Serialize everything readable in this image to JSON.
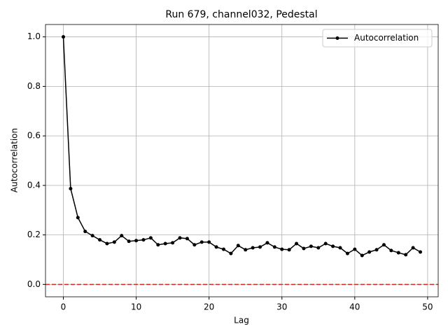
{
  "chart_data": {
    "type": "line",
    "title": "Run 679, channel032, Pedestal",
    "xlabel": "Lag",
    "ylabel": "Autocorrelation",
    "x": [
      0,
      1,
      2,
      3,
      4,
      5,
      6,
      7,
      8,
      9,
      10,
      11,
      12,
      13,
      14,
      15,
      16,
      17,
      18,
      19,
      20,
      21,
      22,
      23,
      24,
      25,
      26,
      27,
      28,
      29,
      30,
      31,
      32,
      33,
      34,
      35,
      36,
      37,
      38,
      39,
      40,
      41,
      42,
      43,
      44,
      45,
      46,
      47,
      48,
      49
    ],
    "series": [
      {
        "name": "Autocorrelation",
        "color": "#000000",
        "values": [
          1.0,
          0.387,
          0.27,
          0.214,
          0.197,
          0.18,
          0.165,
          0.171,
          0.197,
          0.174,
          0.177,
          0.18,
          0.188,
          0.16,
          0.165,
          0.168,
          0.188,
          0.185,
          0.16,
          0.171,
          0.171,
          0.151,
          0.142,
          0.125,
          0.157,
          0.14,
          0.148,
          0.151,
          0.168,
          0.151,
          0.142,
          0.14,
          0.165,
          0.145,
          0.154,
          0.148,
          0.165,
          0.154,
          0.148,
          0.125,
          0.142,
          0.117,
          0.131,
          0.14,
          0.16,
          0.137,
          0.128,
          0.12,
          0.148,
          0.131
        ]
      }
    ],
    "hline": {
      "value": 0,
      "color": "#d62728"
    },
    "xlim": [
      -2.45,
      51.45
    ],
    "xticks": [
      0,
      10,
      20,
      30,
      40,
      50
    ],
    "ylim": [
      -0.05,
      1.05
    ],
    "yticks": [
      {
        "value": 0,
        "label": "0.0"
      },
      {
        "value": 0.2,
        "label": "0.2"
      },
      {
        "value": 0.4,
        "label": "0.4"
      },
      {
        "value": 0.6,
        "label": "0.6"
      },
      {
        "value": 0.8,
        "label": "0.8"
      },
      {
        "value": 1.0,
        "label": "1.0"
      }
    ],
    "grid": true,
    "legend": "upper right"
  }
}
